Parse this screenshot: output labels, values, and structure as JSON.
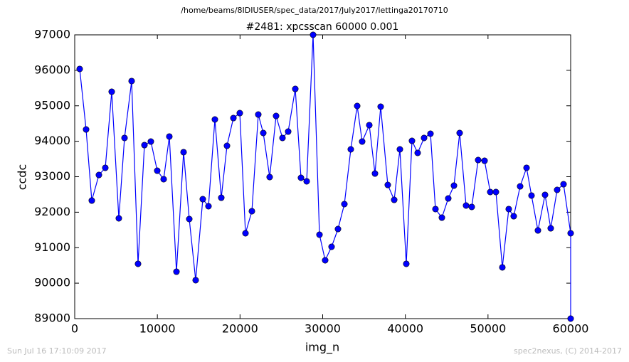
{
  "chart_data": {
    "type": "line",
    "suptitle": "/home/beams/8IDIUSER/spec_data/2017/July2017/lettinga20170710",
    "title": "#2481: xpcsscan 60000 0.001",
    "xlabel": "img_n",
    "ylabel": "ccdc",
    "footer_left": "Sun Jul 16 17:10:09 2017",
    "footer_right": "spec2nexus, (C) 2014-2017",
    "color": "#0000ff",
    "x": [
      603,
      1377,
      2066,
      2927,
      3701,
      4476,
      5337,
      6026,
      6886,
      7661,
      8436,
      9211,
      9986,
      10761,
      11449,
      12310,
      13171,
      13859,
      14634,
      15495,
      16184,
      16958,
      17733,
      18422,
      19197,
      19971,
      20660,
      21435,
      22210,
      22812,
      23586,
      24361,
      25136,
      25825,
      26686,
      27374,
      28063,
      28838,
      29613,
      30301,
      31076,
      31851,
      32625,
      33400,
      34175,
      34777,
      35638,
      36327,
      37015,
      37876,
      38651,
      39340,
      40114,
      40803,
      41492,
      42266,
      43041,
      43644,
      44419,
      45193,
      45882,
      46571,
      47345,
      48034,
      48809,
      49584,
      50272,
      50961,
      51736,
      52510,
      53113,
      53888,
      54663,
      55265,
      56040,
      56901,
      57589,
      58364,
      59139,
      60000,
      60000
    ],
    "values": [
      96038,
      94333,
      92328,
      93050,
      93251,
      95396,
      91827,
      94093,
      95697,
      90544,
      93892,
      93992,
      93170,
      92930,
      94133,
      90323,
      93692,
      91807,
      90083,
      92368,
      92168,
      94614,
      92408,
      93872,
      94654,
      94794,
      91406,
      92028,
      94754,
      94233,
      92990,
      94714,
      94093,
      94273,
      95476,
      92970,
      92870,
      97000,
      91366,
      90644,
      91025,
      91526,
      92228,
      93772,
      94995,
      93992,
      94454,
      93090,
      94975,
      92769,
      92348,
      93772,
      90544,
      94012,
      93672,
      94093,
      94213,
      92088,
      91847,
      92388,
      92749,
      94233,
      92188,
      92148,
      93471,
      93451,
      92569,
      92569,
      90444,
      92088,
      91887,
      92729,
      93251,
      92469,
      91486,
      92489,
      91546,
      92629,
      92789,
      91406,
      89000
    ],
    "xlim": [
      0,
      60000
    ],
    "ylim": [
      89000,
      97000
    ],
    "xticks": [
      0,
      10000,
      20000,
      30000,
      40000,
      50000,
      60000
    ],
    "yticks": [
      89000,
      90000,
      91000,
      92000,
      93000,
      94000,
      95000,
      96000,
      97000
    ]
  }
}
